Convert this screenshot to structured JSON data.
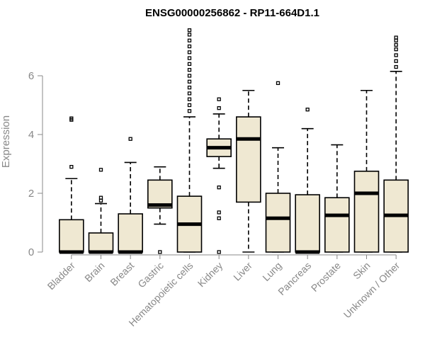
{
  "chart_data": {
    "type": "boxplot",
    "title": "ENSG00000256862 - RP11-664D1.1",
    "ylabel": "Expression",
    "xlabel": "",
    "ylim": [
      0,
      7.6
    ],
    "yticks": [
      0,
      2,
      4,
      6
    ],
    "box_fill": "#efe8d2",
    "categories": [
      "Bladder",
      "Brain",
      "Breast",
      "Gastric",
      "Hematopoietic cells",
      "Kidney",
      "Liver",
      "Lung",
      "Pancreas",
      "Prostate",
      "Skin",
      "Unknown / Other"
    ],
    "boxes": [
      {
        "q1": 0,
        "median": 0,
        "q3": 1.1,
        "whisker_low": 0,
        "whisker_high": 2.5,
        "outliers": [
          2.9,
          4.5,
          4.55
        ]
      },
      {
        "q1": 0,
        "median": 0,
        "q3": 0.65,
        "whisker_low": 0,
        "whisker_high": 1.65,
        "outliers": [
          1.75,
          1.85,
          2.8
        ]
      },
      {
        "q1": 0,
        "median": 0,
        "q3": 1.3,
        "whisker_low": 0,
        "whisker_high": 3.05,
        "outliers": [
          3.85
        ]
      },
      {
        "q1": 1.5,
        "median": 1.6,
        "q3": 2.45,
        "whisker_low": 0.95,
        "whisker_high": 2.9,
        "outliers": [
          0
        ]
      },
      {
        "q1": 0,
        "median": 0.95,
        "q3": 1.9,
        "whisker_low": 0,
        "whisker_high": 4.6,
        "outliers": [
          4.8,
          5.0,
          5.2,
          5.4,
          5.6,
          5.8,
          6.0,
          6.2,
          6.4,
          6.6,
          6.8,
          7.0,
          7.2,
          7.4,
          7.55
        ]
      },
      {
        "q1": 3.25,
        "median": 3.55,
        "q3": 3.85,
        "whisker_low": 2.85,
        "whisker_high": 4.7,
        "outliers": [
          0,
          1.15,
          1.35,
          2.2,
          4.9,
          5.2
        ]
      },
      {
        "q1": 1.7,
        "median": 3.85,
        "q3": 4.6,
        "whisker_low": 0,
        "whisker_high": 5.5,
        "outliers": []
      },
      {
        "q1": 0,
        "median": 1.15,
        "q3": 2.0,
        "whisker_low": 0,
        "whisker_high": 3.55,
        "outliers": [
          5.75
        ]
      },
      {
        "q1": 0,
        "median": 0,
        "q3": 1.95,
        "whisker_low": 0,
        "whisker_high": 4.2,
        "outliers": [
          4.85
        ]
      },
      {
        "q1": 0,
        "median": 1.25,
        "q3": 1.85,
        "whisker_low": 0,
        "whisker_high": 3.65,
        "outliers": []
      },
      {
        "q1": 0,
        "median": 2.0,
        "q3": 2.75,
        "whisker_low": 0,
        "whisker_high": 5.5,
        "outliers": []
      },
      {
        "q1": 0,
        "median": 1.25,
        "q3": 2.45,
        "whisker_low": 0,
        "whisker_high": 6.15,
        "outliers": [
          6.3,
          6.5,
          6.7,
          6.9,
          7.05,
          7.2,
          7.3
        ]
      }
    ]
  }
}
